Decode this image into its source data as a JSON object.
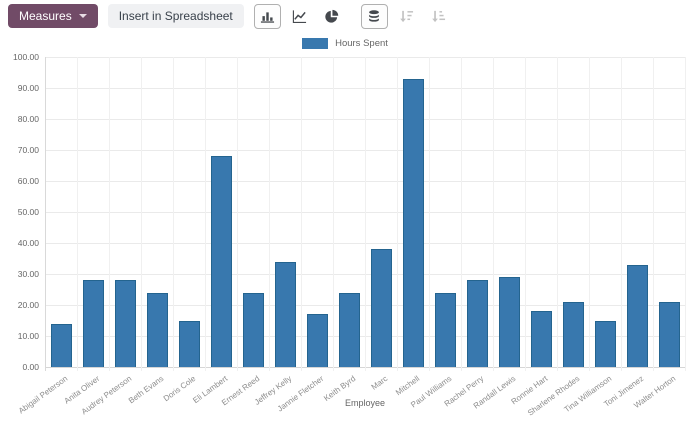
{
  "toolbar": {
    "measures_label": "Measures",
    "insert_spreadsheet_label": "Insert in Spreadsheet",
    "chart_type_buttons": [
      {
        "name": "bar-chart",
        "active": true
      },
      {
        "name": "line-chart",
        "active": false
      },
      {
        "name": "pie-chart",
        "active": false
      }
    ],
    "option_buttons": [
      {
        "name": "stacked",
        "active": true
      },
      {
        "name": "sort-descending",
        "active": false
      },
      {
        "name": "sort-ascending",
        "active": false
      }
    ]
  },
  "legend": {
    "label": "Hours Spent",
    "color": "#3878ae"
  },
  "chart_data": {
    "type": "bar",
    "title": "",
    "xlabel": "Employee",
    "ylabel": "",
    "ylim": [
      0,
      100
    ],
    "ytick_step": 10,
    "ytick_format_decimals": 2,
    "grid": true,
    "legend_position": "top",
    "categories": [
      "Abigail Peterson",
      "Anita Oliver",
      "Audrey Peterson",
      "Beth Evans",
      "Doris Cole",
      "Eli Lambert",
      "Ernest Reed",
      "Jeffrey Kelly",
      "Jannie Fletcher",
      "Keith Byrd",
      "Marc",
      "Mitchell",
      "Paul Williams",
      "Rachel Perry",
      "Randall Lewis",
      "Ronnie Hart",
      "Sharlene Rhodes",
      "Tina Williamson",
      "Toni Jimenez",
      "Walter Horton"
    ],
    "series": [
      {
        "name": "Hours Spent",
        "color": "#3878ae",
        "border_color": "#24648f",
        "values": [
          14,
          28,
          28,
          24,
          15,
          68,
          24,
          34,
          17,
          24,
          38,
          93,
          24,
          28,
          29,
          18,
          21,
          15,
          33,
          21
        ]
      }
    ]
  }
}
